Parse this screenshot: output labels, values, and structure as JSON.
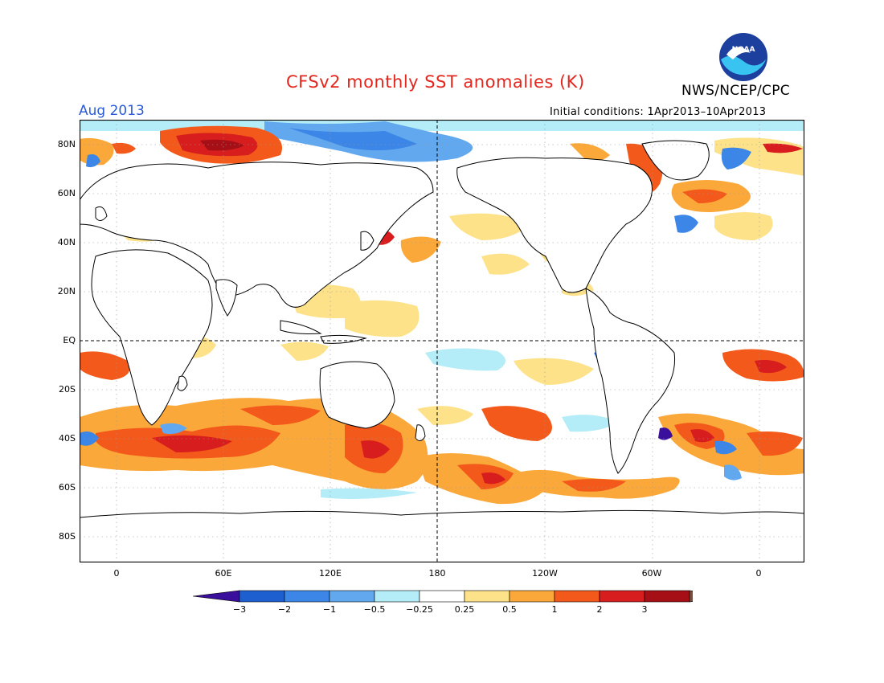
{
  "header": {
    "title": "CFSv2 monthly SST anomalies (K)",
    "month": "Aug 2013",
    "initial_conditions": "Initial conditions: 1Apr2013–10Apr2013",
    "organization": "NWS/NCEP/CPC",
    "logo_text": "NOAA"
  },
  "map": {
    "lat_labels": [
      "80N",
      "60N",
      "40N",
      "20N",
      "EQ",
      "20S",
      "40S",
      "60S",
      "80S"
    ],
    "lon_labels": [
      "0",
      "60E",
      "120E",
      "180",
      "120W",
      "60W",
      "0"
    ]
  },
  "colorbar": {
    "labels": [
      "−3",
      "−2",
      "−1",
      "−0.5",
      "−0.25",
      "0.25",
      "0.5",
      "1",
      "2",
      "3"
    ],
    "colors": [
      "#3a0f9c",
      "#1e5fd0",
      "#3b86e6",
      "#62a8ef",
      "#b4ecf7",
      "#ffffff",
      "#fde28a",
      "#fba83a",
      "#f2591a",
      "#d71d1d",
      "#a50f15",
      "#7a4e3a"
    ]
  }
}
